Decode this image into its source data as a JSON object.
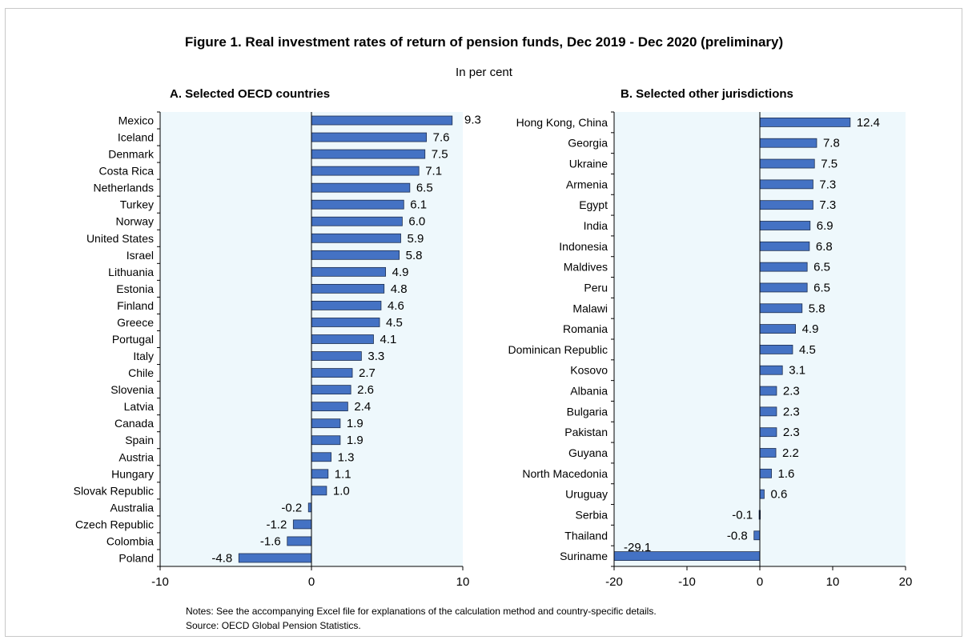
{
  "title": "Figure 1. Real investment rates of return of pension funds, Dec 2019 - Dec 2020 (preliminary)",
  "subtitle": "In per cent",
  "notes": "Notes: See the accompanying Excel file for explanations of the calculation method and country-specific details.",
  "source": "Source: OECD Global Pension Statistics.",
  "colors": {
    "bar": "#4472c4",
    "bar_edge": "#1f2f4f",
    "plot_bg": "#eef8fc"
  },
  "chart_data": [
    {
      "type": "bar",
      "orientation": "horizontal",
      "title": "A. Selected OECD countries",
      "categories": [
        "Mexico",
        "Iceland",
        "Denmark",
        "Costa Rica",
        "Netherlands",
        "Turkey",
        "Norway",
        "United States",
        "Israel",
        "Lithuania",
        "Estonia",
        "Finland",
        "Greece",
        "Portugal",
        "Italy",
        "Chile",
        "Slovenia",
        "Latvia",
        "Canada",
        "Spain",
        "Austria",
        "Hungary",
        "Slovak Republic",
        "Australia",
        "Czech Republic",
        "Colombia",
        "Poland"
      ],
      "values": [
        9.3,
        7.6,
        7.5,
        7.1,
        6.5,
        6.1,
        6.0,
        5.9,
        5.8,
        4.9,
        4.8,
        4.6,
        4.5,
        4.1,
        3.3,
        2.7,
        2.6,
        2.4,
        1.9,
        1.9,
        1.3,
        1.1,
        1.0,
        -0.2,
        -1.2,
        -1.6,
        -4.8
      ],
      "value_labels": [
        "9.3",
        "7.6",
        "7.5",
        "7.1",
        "6.5",
        "6.1",
        "6.0",
        "5.9",
        "5.8",
        "4.9",
        "4.8",
        "4.6",
        "4.5",
        "4.1",
        "3.3",
        "2.7",
        "2.6",
        "2.4",
        "1.9",
        "1.9",
        "1.3",
        "1.1",
        "1.0",
        "-0.2",
        "-1.2",
        "-1.6",
        "-4.8"
      ],
      "xlim": [
        -10,
        10
      ],
      "xticks": [
        "-10",
        "0",
        "10"
      ],
      "grid": false
    },
    {
      "type": "bar",
      "orientation": "horizontal",
      "title": "B. Selected other jurisdictions",
      "categories": [
        "Hong Kong, China",
        "Georgia",
        "Ukraine",
        "Armenia",
        "Egypt",
        "India",
        "Indonesia",
        "Maldives",
        "Peru",
        "Malawi",
        "Romania",
        "Dominican Republic",
        "Kosovo",
        "Albania",
        "Bulgaria",
        "Pakistan",
        "Guyana",
        "North Macedonia",
        "Uruguay",
        "Serbia",
        "Thailand",
        "Suriname"
      ],
      "values": [
        12.4,
        7.8,
        7.5,
        7.3,
        7.3,
        6.9,
        6.8,
        6.5,
        6.5,
        5.8,
        4.9,
        4.5,
        3.1,
        2.3,
        2.3,
        2.3,
        2.2,
        1.6,
        0.6,
        -0.1,
        -0.8,
        -29.1
      ],
      "value_labels": [
        "12.4",
        "7.8",
        "7.5",
        "7.3",
        "7.3",
        "6.9",
        "6.8",
        "6.5",
        "6.5",
        "5.8",
        "4.9",
        "4.5",
        "3.1",
        "2.3",
        "2.3",
        "2.3",
        "2.2",
        "1.6",
        "0.6",
        "-0.1",
        "-0.8",
        "-29.1"
      ],
      "xlim": [
        -20,
        20
      ],
      "xticks": [
        "-20",
        "-10",
        "0",
        "10",
        "20"
      ],
      "grid": false
    }
  ]
}
